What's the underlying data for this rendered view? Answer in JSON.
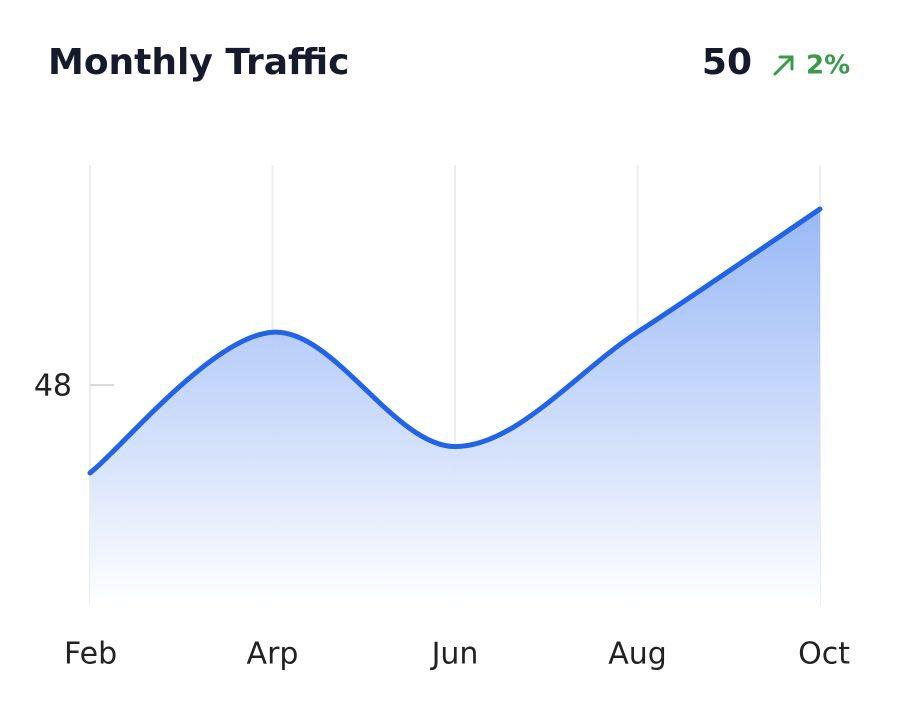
{
  "header": {
    "value": "50",
    "change": "2%"
  },
  "chart_data": {
    "type": "area",
    "title": "Monthly Traffic",
    "categories": [
      "Feb",
      "Arp",
      "Jun",
      "Aug",
      "Oct"
    ],
    "series": [
      {
        "name": "Traffic",
        "color": "#2264e5",
        "values": [
          47,
          48.6,
          47.3,
          48.6,
          50
        ]
      }
    ],
    "ylim": [
      45.5,
      50.5
    ],
    "yticks": [
      48
    ],
    "grid": true
  }
}
